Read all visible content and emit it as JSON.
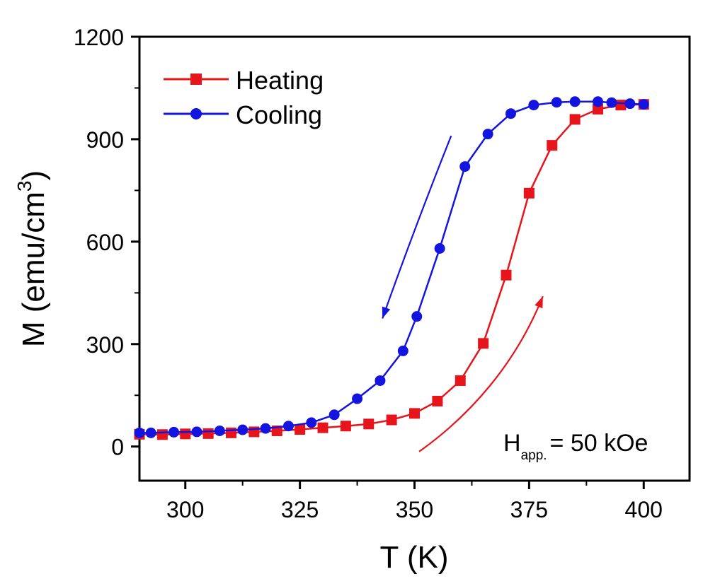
{
  "chart_data": {
    "type": "line",
    "xlabel": "T (K)",
    "ylabel": "M (emu/cm",
    "ylabel_sup": "3",
    "ylabel_end": ")",
    "xlim": [
      290,
      410
    ],
    "ylim": [
      -100,
      1200
    ],
    "x_ticks": [
      300,
      325,
      350,
      375,
      400
    ],
    "y_ticks": [
      0,
      300,
      600,
      900,
      1200
    ],
    "annotation": {
      "main": "H",
      "sub": "app.",
      "rest": "= 50 kOe"
    },
    "colors": {
      "heating": "#e8141b",
      "cooling": "#1414e0",
      "axis": "#000000"
    },
    "series": [
      {
        "name": "Heating",
        "marker": "square",
        "color": "#e8141b",
        "x": [
          290,
          295,
          300,
          305,
          310,
          315,
          320,
          325,
          330,
          335,
          340,
          345,
          350,
          355,
          360,
          365,
          370,
          375,
          380,
          385,
          390,
          395,
          400
        ],
        "y": [
          36,
          35,
          37,
          38,
          40,
          43,
          46,
          50,
          55,
          60,
          66,
          78,
          97,
          133,
          193,
          302,
          502,
          742,
          882,
          958,
          988,
          1000,
          1002
        ]
      },
      {
        "name": "Cooling",
        "marker": "circle",
        "color": "#1414e0",
        "x": [
          290,
          292.5,
          297.5,
          302.5,
          307.5,
          312.5,
          317.5,
          322.5,
          327.5,
          332.5,
          337.5,
          342.5,
          347.5,
          350.5,
          355.5,
          361,
          366,
          371,
          376,
          381,
          385,
          390,
          393,
          397,
          400
        ],
        "y": [
          40,
          40,
          42,
          43,
          46,
          49,
          53,
          60,
          70,
          93,
          140,
          193,
          280,
          381,
          580,
          820,
          915,
          975,
          1000,
          1008,
          1010,
          1010,
          1007,
          1004,
          1002
        ]
      }
    ],
    "arrows": [
      {
        "series": "Heating",
        "direction": "up",
        "path_x": [
          351,
          362,
          372,
          378
        ],
        "path_y": [
          -15,
          90,
          240,
          440
        ]
      },
      {
        "series": "Cooling",
        "direction": "down",
        "path_x": [
          358,
          350,
          343
        ],
        "path_y": [
          910,
          640,
          375
        ]
      }
    ]
  }
}
